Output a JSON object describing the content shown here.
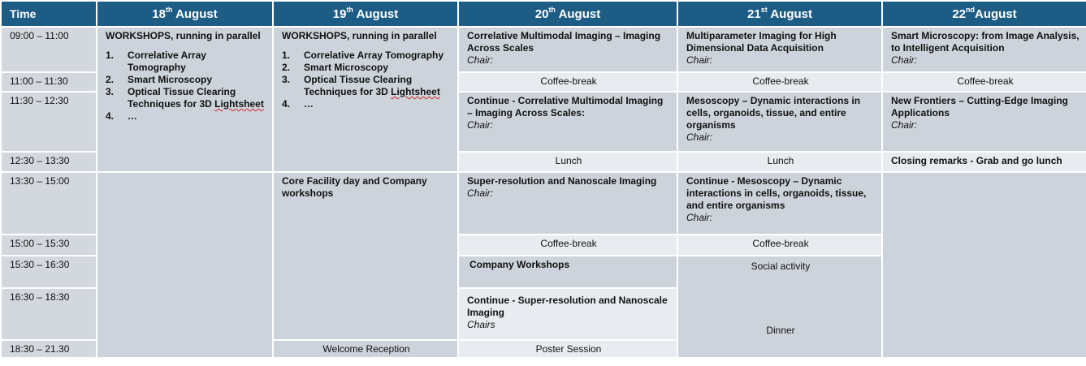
{
  "header": {
    "time": "Time",
    "days": [
      {
        "num": "18",
        "suffix": "th",
        "month": "August"
      },
      {
        "num": "19",
        "suffix": "th",
        "month": "August"
      },
      {
        "num": "20",
        "suffix": "th",
        "month": "August"
      },
      {
        "num": "21",
        "suffix": "st",
        "month": "August"
      },
      {
        "num": "22",
        "suffix": "nd",
        "month": "August"
      }
    ]
  },
  "times": [
    "09:00 – 11:00",
    "11:00 – 11:30",
    "11:30 – 12:30",
    "12:30 – 13:30",
    "13:30 – 15:00",
    "15:00 – 15:30",
    "15:30  –  16:30",
    "16:30 – 18:30",
    "18:30 – 21.30"
  ],
  "day18": {
    "title": "WORKSHOPS, running in parallel",
    "items": [
      {
        "n": "1.",
        "text": "Correlative Array Tomography"
      },
      {
        "n": "2.",
        "text": "Smart Microscopy"
      },
      {
        "n": "3.",
        "text": "Optical Tissue Clearing Techniques for  3D ",
        "extra": "Lightsheet"
      },
      {
        "n": "4.",
        "text": "…"
      }
    ]
  },
  "day19": {
    "title": "WORKSHOPS, running in parallel",
    "items": [
      {
        "n": "1.",
        "text": "Correlative Array Tomography"
      },
      {
        "n": "2.",
        "text": "Smart Microscopy"
      },
      {
        "n": "3.",
        "text": "Optical Tissue Clearing Techniques for  3D ",
        "extra": "Lightsheet"
      },
      {
        "n": "4.",
        "text": "…"
      }
    ],
    "core": "Core  Facility day and Company workshops",
    "reception": "Welcome Reception"
  },
  "day20": {
    "s1_title": "Correlative Multimodal Imaging – Imaging Across Scales",
    "s1_chair": "Chair:",
    "coffee1": "Coffee-break",
    "s2_title": "Continue - Correlative Multimodal Imaging – Imaging Across Scales:",
    "s2_chair": "Chair:",
    "lunch": "Lunch",
    "s3_title": "Super-resolution and Nanoscale Imaging",
    "s3_chair": "Chair:",
    "coffee2": "Coffee-break",
    "company": "Company Workshops",
    "s4_title": "Continue - Super-resolution and Nanoscale Imaging",
    "s4_chair": "Chairs",
    "poster": "Poster Session"
  },
  "day21": {
    "s1_title": "Multiparameter Imaging for High Dimensional Data Acquisition",
    "s1_chair": "Chair:",
    "coffee1": "Coffee-break",
    "s2_title": "Mesoscopy –  Dynamic interactions in cells, organoids, tissue, and entire organisms",
    "s2_chair": "Chair:",
    "lunch": "Lunch",
    "s3_title": "Continue - Mesoscopy –  Dynamic interactions in cells, organoids, tissue, and entire organisms",
    "s3_chair": "Chair:",
    "coffee2": "Coffee-break",
    "social": "Social activity",
    "dinner": "Dinner"
  },
  "day22": {
    "s1_title": "Smart Microscopy: from Image Analysis, to Intelligent Acquisition",
    "s1_chair": "Chair:",
    "coffee1": "Coffee-break",
    "s2_title": "New Frontiers – Cutting-Edge Imaging Applications",
    "s2_chair": "Chair:",
    "closing": "Closing remarks - Grab and go lunch"
  }
}
